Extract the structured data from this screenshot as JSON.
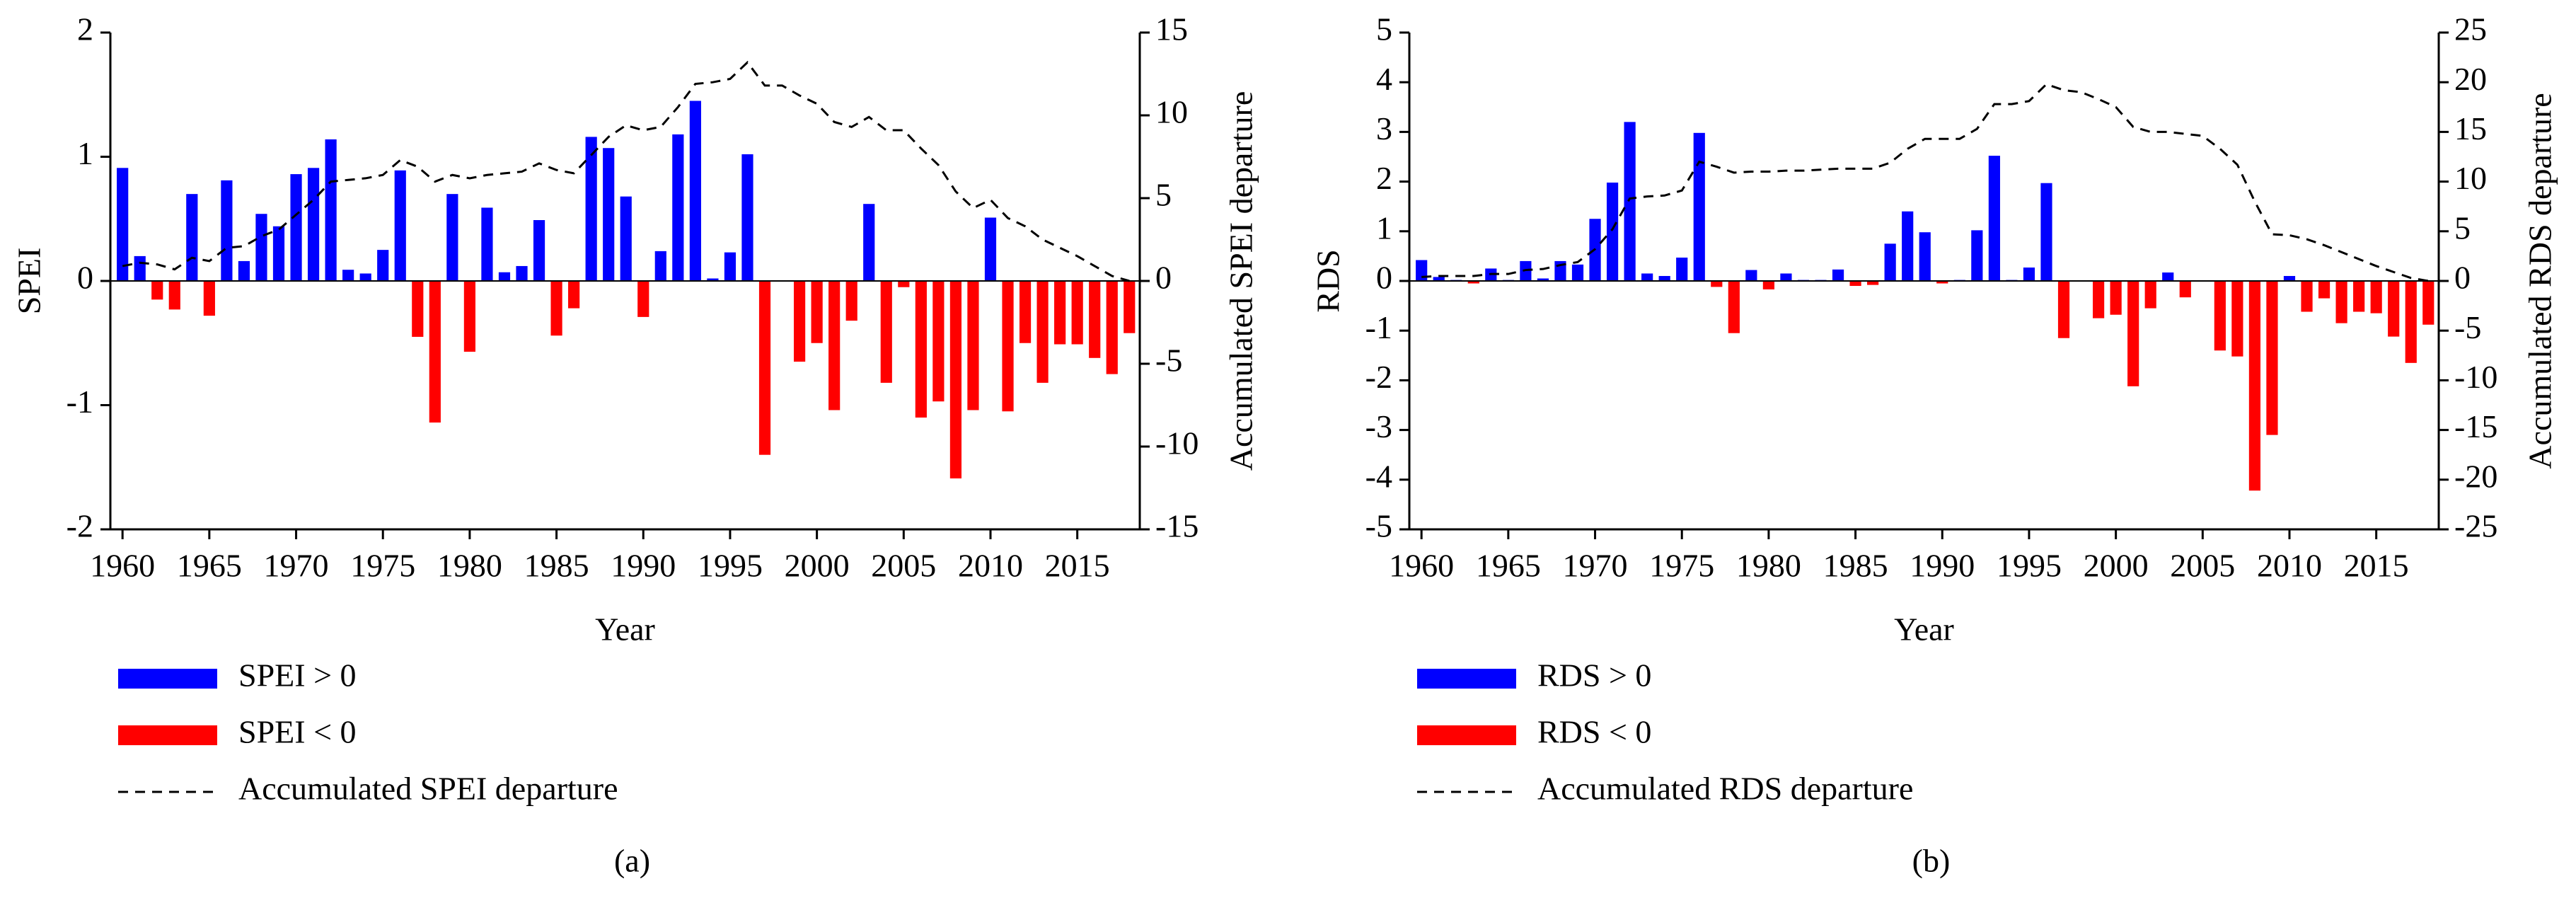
{
  "chart_data": [
    {
      "type": "bar",
      "xlabel": "Year",
      "ylabel": "SPEI",
      "y2label": "Accumulated SPEI departure",
      "caption": "(a)",
      "x": [
        1960,
        1961,
        1962,
        1963,
        1964,
        1965,
        1966,
        1967,
        1968,
        1969,
        1970,
        1971,
        1972,
        1973,
        1974,
        1975,
        1976,
        1977,
        1978,
        1979,
        1980,
        1981,
        1982,
        1983,
        1984,
        1985,
        1986,
        1987,
        1988,
        1989,
        1990,
        1991,
        1992,
        1993,
        1994,
        1995,
        1996,
        1997,
        1998,
        1999,
        2000,
        2001,
        2002,
        2003,
        2004,
        2005,
        2006,
        2007,
        2008,
        2009,
        2010,
        2011,
        2012,
        2013,
        2014,
        2015,
        2016,
        2017,
        2018
      ],
      "xlim": [
        1959.3,
        2018.6
      ],
      "xticks": [
        1960,
        1965,
        1970,
        1975,
        1980,
        1985,
        1990,
        1995,
        2000,
        2005,
        2010,
        2015
      ],
      "ylim": [
        -2,
        2
      ],
      "yticks": [
        -2,
        -1,
        0,
        1,
        2
      ],
      "y2lim": [
        -15,
        15
      ],
      "y2ticks": [
        -15,
        -10,
        -5,
        0,
        5,
        10,
        15
      ],
      "series": [
        {
          "name": "SPEI > 0",
          "color": "#0000ff",
          "type": "bar",
          "values": [
            0.91,
            0.2,
            null,
            null,
            0.7,
            null,
            0.81,
            0.16,
            0.54,
            0.44,
            0.86,
            0.91,
            1.14,
            0.09,
            0.06,
            0.25,
            0.89,
            null,
            null,
            0.7,
            null,
            0.59,
            0.07,
            0.12,
            0.49,
            null,
            null,
            1.16,
            1.07,
            0.68,
            null,
            0.24,
            1.18,
            1.45,
            0.02,
            0.23,
            1.02,
            null,
            0,
            null,
            null,
            null,
            null,
            0.62,
            null,
            null,
            null,
            null,
            null,
            null,
            0.51,
            null,
            null,
            null,
            null,
            null,
            null,
            null,
            null
          ]
        },
        {
          "name": "SPEI < 0",
          "color": "#ff0000",
          "type": "bar",
          "values": [
            null,
            null,
            -0.15,
            -0.23,
            null,
            -0.28,
            null,
            null,
            null,
            null,
            null,
            null,
            null,
            null,
            null,
            null,
            null,
            -0.45,
            -1.14,
            null,
            -0.57,
            null,
            null,
            null,
            null,
            -0.44,
            -0.22,
            null,
            null,
            null,
            -0.29,
            null,
            null,
            null,
            null,
            null,
            null,
            -1.4,
            null,
            -0.65,
            -0.5,
            -1.04,
            -0.32,
            null,
            -0.82,
            -0.05,
            -1.1,
            -0.97,
            -1.59,
            -1.04,
            null,
            -1.05,
            -0.5,
            -0.82,
            -0.51,
            -0.51,
            -0.62,
            -0.75,
            -0.42
          ]
        },
        {
          "name": "Accumulated SPEI departure",
          "color": "#000000",
          "type": "line",
          "axis": "y2",
          "values": [
            0.9,
            1.1,
            1.0,
            0.7,
            1.4,
            1.2,
            2.0,
            2.1,
            2.7,
            3.1,
            4.0,
            4.9,
            6.0,
            6.1,
            6.2,
            6.4,
            7.3,
            6.9,
            6.0,
            6.4,
            6.2,
            6.4,
            6.5,
            6.6,
            7.1,
            6.7,
            6.5,
            7.6,
            8.7,
            9.4,
            9.1,
            9.3,
            10.5,
            11.9,
            12.0,
            12.2,
            13.2,
            11.8,
            11.8,
            11.2,
            10.7,
            9.6,
            9.3,
            9.9,
            9.1,
            9.1,
            8.0,
            7.0,
            5.4,
            4.4,
            4.9,
            3.8,
            3.3,
            2.5,
            2.0,
            1.5,
            0.9,
            0.3,
            0
          ]
        }
      ]
    },
    {
      "type": "bar",
      "xlabel": "Year",
      "ylabel": "RDS",
      "y2label": "Accumulated RDS departure",
      "caption": "(b)",
      "x": [
        1960,
        1961,
        1962,
        1963,
        1964,
        1965,
        1966,
        1967,
        1968,
        1969,
        1970,
        1971,
        1972,
        1973,
        1974,
        1975,
        1976,
        1977,
        1978,
        1979,
        1980,
        1981,
        1982,
        1983,
        1984,
        1985,
        1986,
        1987,
        1988,
        1989,
        1990,
        1991,
        1992,
        1993,
        1994,
        1995,
        1996,
        1997,
        1998,
        1999,
        2000,
        2001,
        2002,
        2003,
        2004,
        2005,
        2006,
        2007,
        2008,
        2009,
        2010,
        2011,
        2012,
        2013,
        2014,
        2015,
        2016,
        2017,
        2018
      ],
      "xlim": [
        1959.3,
        2018.6
      ],
      "xticks": [
        1960,
        1965,
        1970,
        1975,
        1980,
        1985,
        1990,
        1995,
        2000,
        2005,
        2010,
        2015
      ],
      "ylim": [
        -5,
        5
      ],
      "yticks": [
        -5,
        -4,
        -3,
        -2,
        -1,
        0,
        1,
        2,
        3,
        4,
        5
      ],
      "y2lim": [
        -25,
        25
      ],
      "y2ticks": [
        -25,
        -20,
        -15,
        -10,
        -5,
        0,
        5,
        10,
        15,
        20,
        25
      ],
      "series": [
        {
          "name": "RDS > 0",
          "color": "#0000ff",
          "type": "bar",
          "values": [
            0.42,
            0.08,
            0.02,
            null,
            0.25,
            0.02,
            0.4,
            0.05,
            0.4,
            0.33,
            1.25,
            1.98,
            3.2,
            0.15,
            0.1,
            0.47,
            2.98,
            null,
            null,
            0.22,
            null,
            0.15,
            0.02,
            0.02,
            0.23,
            null,
            null,
            0.75,
            1.4,
            0.98,
            null,
            0.02,
            1.02,
            2.52,
            0.02,
            0.27,
            1.97,
            null,
            0,
            null,
            null,
            null,
            null,
            0.17,
            null,
            0,
            null,
            null,
            null,
            null,
            0.1,
            null,
            null,
            null,
            null,
            null,
            null,
            null,
            null
          ]
        },
        {
          "name": "RDS < 0",
          "color": "#ff0000",
          "type": "bar",
          "values": [
            null,
            null,
            null,
            -0.05,
            null,
            null,
            null,
            null,
            null,
            null,
            null,
            null,
            null,
            null,
            null,
            null,
            null,
            -0.12,
            -1.05,
            null,
            -0.17,
            null,
            null,
            null,
            null,
            -0.1,
            -0.08,
            null,
            null,
            null,
            -0.05,
            null,
            null,
            null,
            null,
            null,
            null,
            -1.15,
            null,
            -0.75,
            -0.68,
            -2.12,
            -0.55,
            null,
            -0.33,
            null,
            -1.4,
            -1.52,
            -4.22,
            -3.1,
            null,
            -0.62,
            -0.35,
            -0.85,
            -0.62,
            -0.65,
            -1.12,
            -1.65,
            -0.88
          ]
        },
        {
          "name": "Accumulated RDS departure",
          "color": "#000000",
          "type": "line",
          "axis": "y2",
          "values": [
            0.4,
            0.5,
            0.5,
            0.5,
            0.7,
            0.7,
            1.1,
            1.2,
            1.6,
            1.9,
            3.2,
            5.2,
            8.3,
            8.5,
            8.6,
            9.1,
            12.0,
            11.5,
            10.9,
            11.0,
            11.0,
            11.1,
            11.1,
            11.2,
            11.3,
            11.3,
            11.3,
            11.9,
            13.3,
            14.3,
            14.3,
            14.3,
            15.3,
            17.8,
            17.8,
            18.1,
            19.8,
            19.2,
            19.0,
            18.3,
            17.5,
            15.5,
            15.0,
            15.0,
            14.8,
            14.6,
            13.3,
            11.7,
            8.0,
            4.7,
            4.6,
            4.2,
            3.6,
            2.9,
            2.2,
            1.5,
            0.9,
            0.3,
            0
          ]
        }
      ]
    }
  ]
}
